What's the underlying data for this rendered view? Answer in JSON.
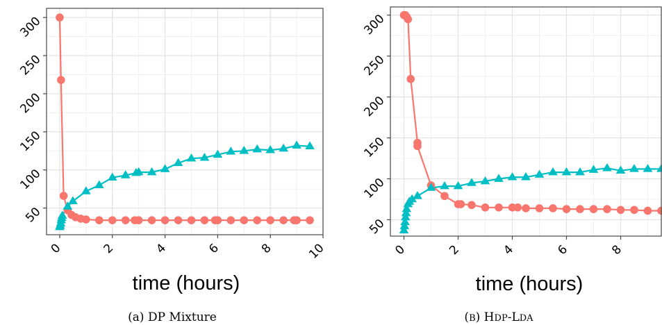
{
  "chart_data": [
    {
      "type": "line",
      "caption": "(a) DP Mixture",
      "xlabel": "time (hours)",
      "ylabel": "",
      "xlim": [
        -0.5,
        10
      ],
      "ylim": [
        15,
        312
      ],
      "x_ticks": [
        0,
        2,
        4,
        6,
        8,
        10
      ],
      "y_ticks": [
        50,
        100,
        150,
        200,
        250,
        300
      ],
      "grid": true,
      "legend": "none",
      "series": [
        {
          "color": "#f8766d",
          "marker": "circle",
          "points": [
            [
              0,
              300
            ],
            [
              0.05,
              218
            ],
            [
              0.15,
              66
            ],
            [
              0.3,
              47
            ],
            [
              0.45,
              41
            ],
            [
              0.6,
              38
            ],
            [
              0.8,
              36
            ],
            [
              1.0,
              35
            ],
            [
              1.5,
              34
            ],
            [
              2.0,
              34
            ],
            [
              2.5,
              34
            ],
            [
              2.85,
              34
            ],
            [
              3.0,
              34
            ],
            [
              3.5,
              34
            ],
            [
              4.0,
              34
            ],
            [
              4.5,
              34
            ],
            [
              5.0,
              34
            ],
            [
              5.5,
              34
            ],
            [
              5.9,
              34
            ],
            [
              6.0,
              34
            ],
            [
              6.5,
              34
            ],
            [
              7.0,
              34
            ],
            [
              7.5,
              34
            ],
            [
              8.0,
              34
            ],
            [
              8.5,
              34
            ],
            [
              8.9,
              34
            ],
            [
              9.0,
              34
            ],
            [
              9.5,
              34
            ]
          ]
        },
        {
          "color": "#00bfc4",
          "marker": "triangle",
          "points": [
            [
              0,
              25
            ],
            [
              0.02,
              27
            ],
            [
              0.04,
              30
            ],
            [
              0.06,
              34
            ],
            [
              0.08,
              37
            ],
            [
              0.1,
              40
            ],
            [
              0.3,
              52
            ],
            [
              0.5,
              59
            ],
            [
              1.0,
              72
            ],
            [
              1.5,
              80
            ],
            [
              2.0,
              90
            ],
            [
              2.5,
              93
            ],
            [
              2.9,
              96
            ],
            [
              3.0,
              97
            ],
            [
              3.5,
              97
            ],
            [
              4.0,
              101
            ],
            [
              4.5,
              109
            ],
            [
              5.0,
              115
            ],
            [
              5.5,
              116
            ],
            [
              6.0,
              120
            ],
            [
              6.5,
              124
            ],
            [
              7.0,
              125
            ],
            [
              7.5,
              127
            ],
            [
              8.0,
              126
            ],
            [
              8.5,
              128
            ],
            [
              9.0,
              132
            ],
            [
              9.5,
              131
            ]
          ]
        }
      ]
    },
    {
      "type": "line",
      "caption": "(b) Hdp-Lda",
      "xlabel": "time (hours)",
      "ylabel": "",
      "xlim": [
        -0.5,
        9.5
      ],
      "ylim": [
        30,
        310
      ],
      "x_ticks": [
        0,
        2,
        4,
        6,
        8
      ],
      "y_ticks": [
        50,
        100,
        150,
        200,
        250,
        300
      ],
      "grid": true,
      "legend": "none",
      "series": [
        {
          "color": "#f8766d",
          "marker": "circle",
          "points": [
            [
              0,
              300
            ],
            [
              0.05,
              300
            ],
            [
              0.1,
              298
            ],
            [
              0.15,
              295
            ],
            [
              0.25,
              222
            ],
            [
              0.5,
              144
            ],
            [
              0.5,
              140
            ],
            [
              1.0,
              92
            ],
            [
              1.5,
              79
            ],
            [
              2.0,
              69
            ],
            [
              2.1,
              69
            ],
            [
              2.5,
              68
            ],
            [
              3.0,
              65
            ],
            [
              3.5,
              65
            ],
            [
              4.0,
              65
            ],
            [
              4.2,
              65
            ],
            [
              4.5,
              64
            ],
            [
              5.0,
              64
            ],
            [
              5.5,
              64
            ],
            [
              6.0,
              63
            ],
            [
              6.5,
              63
            ],
            [
              7.0,
              63
            ],
            [
              7.5,
              63
            ],
            [
              8.0,
              62
            ],
            [
              8.5,
              62
            ],
            [
              9.0,
              61
            ],
            [
              9.5,
              61
            ]
          ]
        },
        {
          "color": "#00bfc4",
          "marker": "triangle",
          "points": [
            [
              0,
              37
            ],
            [
              0.02,
              42
            ],
            [
              0.04,
              47
            ],
            [
              0.06,
              53
            ],
            [
              0.08,
              58
            ],
            [
              0.1,
              63
            ],
            [
              0.15,
              69
            ],
            [
              0.2,
              72
            ],
            [
              0.3,
              75
            ],
            [
              0.5,
              79
            ],
            [
              1.0,
              89
            ],
            [
              1.5,
              91
            ],
            [
              2.0,
              91
            ],
            [
              2.5,
              95
            ],
            [
              3.0,
              97
            ],
            [
              3.5,
              100
            ],
            [
              4.0,
              102
            ],
            [
              4.5,
              102
            ],
            [
              5.0,
              105
            ],
            [
              5.5,
              108
            ],
            [
              6.0,
              108
            ],
            [
              6.5,
              108
            ],
            [
              7.0,
              111
            ],
            [
              7.5,
              113
            ],
            [
              8.0,
              110
            ],
            [
              8.5,
              112
            ],
            [
              9.0,
              112
            ],
            [
              9.5,
              112
            ]
          ]
        }
      ]
    }
  ]
}
